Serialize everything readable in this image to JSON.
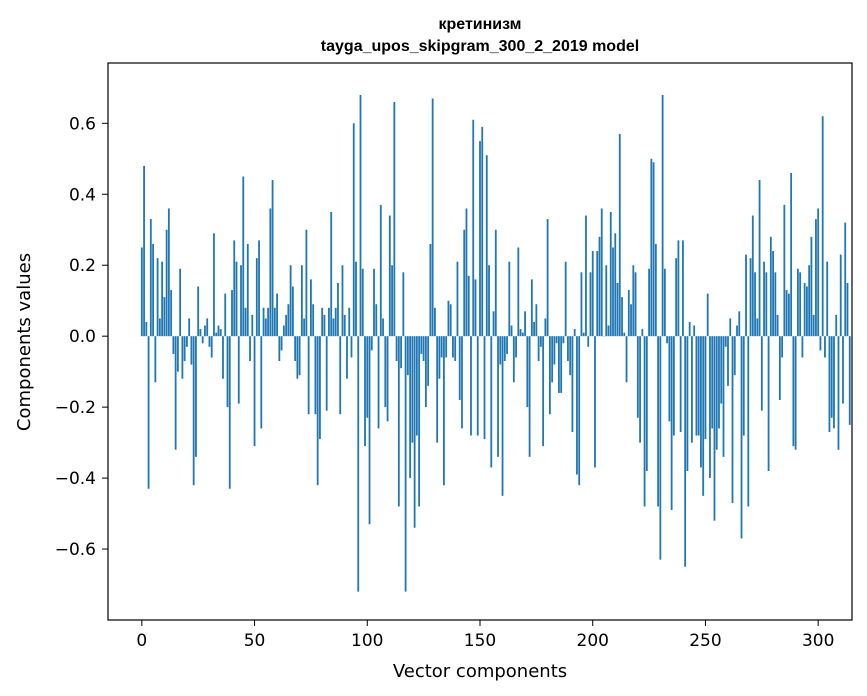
{
  "chart_data": {
    "type": "bar",
    "title": "кретинизм",
    "subtitle": "tayga_upos_skipgram_300_2_2019 model",
    "xlabel": "Vector components",
    "ylabel": "Components values",
    "xlim": [
      -15,
      315
    ],
    "ylim": [
      -0.8,
      0.77
    ],
    "xticks": [
      0,
      50,
      100,
      150,
      200,
      250,
      300
    ],
    "yticks": [
      -0.6,
      -0.4,
      -0.2,
      0.0,
      0.2,
      0.4,
      0.6
    ],
    "ytick_labels": [
      "−0.6",
      "−0.4",
      "−0.2",
      "0.0",
      "0.2",
      "0.4",
      "0.6"
    ],
    "bar_color": "#1f77b4",
    "values": [
      0.25,
      0.48,
      0.04,
      -0.43,
      0.33,
      0.26,
      -0.13,
      0.22,
      0.05,
      0.21,
      0.11,
      0.3,
      0.36,
      0.13,
      -0.05,
      -0.32,
      -0.1,
      0.19,
      -0.12,
      -0.07,
      -0.03,
      0.05,
      -0.08,
      -0.42,
      -0.34,
      0.14,
      0.02,
      -0.02,
      0.03,
      0.05,
      -0.03,
      -0.06,
      0.29,
      0.01,
      0.03,
      0.02,
      -0.12,
      0.12,
      -0.2,
      -0.43,
      0.13,
      0.27,
      0.21,
      -0.19,
      0.2,
      0.45,
      0.08,
      0.26,
      -0.07,
      0.06,
      -0.31,
      0.22,
      0.27,
      -0.26,
      0.08,
      0.05,
      0.08,
      0.36,
      0.44,
      0.08,
      0.12,
      -0.07,
      -0.04,
      0.03,
      0.06,
      0.09,
      0.2,
      0.14,
      -0.07,
      -0.12,
      -0.11,
      0.2,
      0.05,
      0.3,
      -0.22,
      0.16,
      0.09,
      -0.22,
      -0.42,
      -0.29,
      0.08,
      0.06,
      -0.21,
      0.08,
      0.35,
      0.05,
      0.08,
      0.15,
      -0.22,
      0.2,
      0.06,
      -0.12,
      0.08,
      -0.06,
      0.6,
      0.21,
      -0.72,
      0.68,
      0.19,
      -0.31,
      -0.23,
      -0.53,
      -0.04,
      0.19,
      0.09,
      -0.26,
      0.37,
      0.05,
      -0.2,
      -0.24,
      0.34,
      0.2,
      0.66,
      -0.07,
      -0.48,
      -0.09,
      0.18,
      -0.72,
      -0.11,
      -0.4,
      -0.3,
      -0.54,
      -0.28,
      -0.48,
      -0.05,
      -0.07,
      -0.2,
      -0.14,
      0.26,
      0.67,
      0.08,
      -0.3,
      -0.12,
      -0.06,
      -0.42,
      -0.06,
      0.1,
      0.09,
      -0.06,
      -0.07,
      0.21,
      -0.18,
      -0.26,
      0.3,
      0.36,
      0.17,
      -0.28,
      0.61,
      0.16,
      -0.28,
      0.55,
      0.59,
      -0.29,
      0.51,
      0.2,
      -0.37,
      0.07,
      0.3,
      -0.34,
      -0.08,
      -0.45,
      -0.07,
      -0.05,
      0.21,
      0.03,
      -0.13,
      -0.06,
      0.25,
      0.02,
      0.01,
      0.07,
      -0.2,
      -0.34,
      0.16,
      0.04,
      0.09,
      -0.07,
      -0.03,
      -0.31,
      0.05,
      0.33,
      -0.22,
      -0.13,
      -0.08,
      -0.02,
      -0.16,
      -0.16,
      -0.02,
      0.21,
      -0.07,
      -0.11,
      -0.27,
      0.02,
      -0.39,
      -0.42,
      0.18,
      0.01,
      0.34,
      -0.03,
      0.18,
      0.24,
      -0.37,
      0.24,
      0.28,
      0.36,
      0.0,
      0.2,
      0.03,
      0.35,
      0.25,
      0.29,
      0.15,
      0.57,
      0.11,
      0.01,
      -0.13,
      0.13,
      0.09,
      0.2,
      0.18,
      -0.23,
      -0.3,
      0.02,
      -0.48,
      -0.38,
      0.19,
      0.5,
      0.49,
      0.26,
      -0.48,
      -0.63,
      0.68,
      0.19,
      -0.02,
      -0.24,
      -0.49,
      -0.28,
      0.22,
      0.27,
      -0.27,
      0.27,
      -0.65,
      -0.38,
      0.04,
      -0.3,
      0.03,
      -0.28,
      -0.28,
      -0.37,
      -0.45,
      -0.29,
      0.12,
      -0.4,
      -0.26,
      -0.52,
      -0.32,
      -0.26,
      -0.19,
      -0.34,
      -0.03,
      -0.14,
      0.05,
      -0.47,
      -0.11,
      0.03,
      0.07,
      -0.57,
      -0.28,
      0.23,
      -0.48,
      0.22,
      0.34,
      0.18,
      0.05,
      0.44,
      -0.21,
      0.21,
      0.18,
      -0.38,
      0.28,
      0.24,
      0.18,
      0.06,
      -0.18,
      -0.06,
      0.37,
      0.13,
      0.12,
      0.46,
      -0.31,
      -0.32,
      0.19,
      0.18,
      -0.06,
      0.15,
      0.14,
      0.2,
      0.28,
      0.06,
      0.33,
      0.36,
      -0.04,
      0.62,
      -0.06,
      0.21,
      -0.27,
      -0.23,
      -0.26,
      0.06,
      -0.32,
      0.23,
      -0.19,
      0.32,
      0.15,
      -0.25
    ]
  }
}
